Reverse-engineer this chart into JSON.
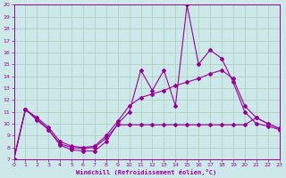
{
  "xlabel": "Windchill (Refroidissement éolien,°C)",
  "xlim": [
    0,
    23
  ],
  "ylim": [
    7,
    20
  ],
  "xticks": [
    0,
    1,
    2,
    3,
    4,
    5,
    6,
    7,
    8,
    9,
    10,
    11,
    12,
    13,
    14,
    15,
    16,
    17,
    18,
    19,
    20,
    21,
    22,
    23
  ],
  "yticks": [
    7,
    8,
    9,
    10,
    11,
    12,
    13,
    14,
    15,
    16,
    17,
    18,
    19,
    20
  ],
  "background_color": "#cce8e8",
  "grid_color": "#aaccbb",
  "line_color": "#990099",
  "line1_x": [
    0,
    1,
    2,
    3,
    4,
    5,
    6,
    7,
    8,
    9,
    10,
    11,
    12,
    13,
    14,
    15,
    16,
    17,
    18,
    19,
    20,
    21,
    22,
    23
  ],
  "line1_y": [
    7.0,
    11.2,
    10.3,
    9.5,
    8.2,
    7.8,
    7.7,
    7.7,
    8.5,
    10.0,
    11.0,
    14.5,
    12.8,
    14.5,
    11.5,
    20.0,
    15.0,
    16.2,
    15.5,
    13.5,
    11.0,
    10.0,
    9.8,
    9.5
  ],
  "line2_x": [
    0,
    1,
    2,
    3,
    4,
    5,
    6,
    7,
    8,
    9,
    10,
    11,
    12,
    13,
    14,
    15,
    16,
    17,
    18,
    19,
    20,
    21,
    22,
    23
  ],
  "line2_y": [
    7.0,
    11.2,
    10.5,
    9.7,
    8.5,
    8.1,
    8.0,
    8.1,
    9.0,
    10.2,
    11.5,
    12.2,
    12.5,
    12.8,
    13.2,
    13.5,
    13.8,
    14.2,
    14.5,
    13.8,
    11.5,
    10.5,
    10.0,
    9.6
  ],
  "line3_x": [
    0,
    1,
    2,
    3,
    4,
    5,
    6,
    7,
    8,
    9,
    10,
    11,
    12,
    13,
    14,
    15,
    16,
    17,
    18,
    19,
    20,
    21,
    22,
    23
  ],
  "line3_y": [
    7.0,
    11.2,
    10.4,
    9.5,
    8.3,
    8.0,
    7.9,
    8.0,
    8.8,
    9.9,
    9.9,
    9.9,
    9.9,
    9.9,
    9.9,
    9.9,
    9.9,
    9.9,
    9.9,
    9.9,
    9.9,
    10.5,
    10.0,
    9.6
  ]
}
